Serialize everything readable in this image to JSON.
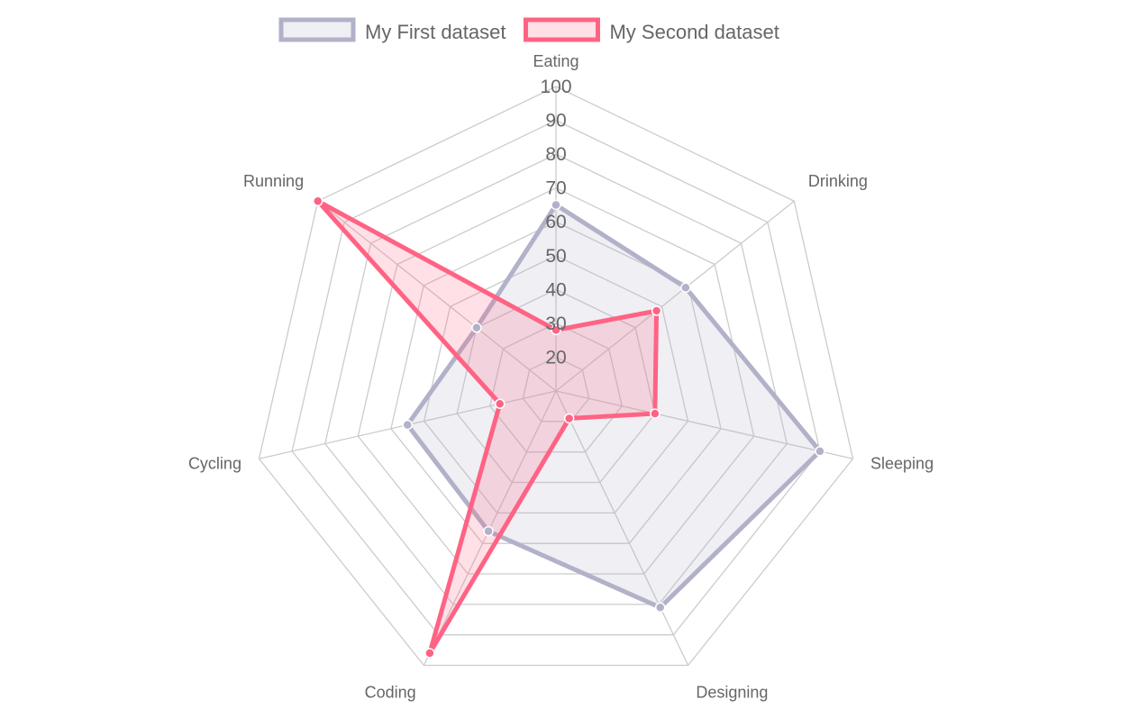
{
  "chart_data": {
    "type": "radar",
    "categories": [
      "Eating",
      "Drinking",
      "Sleeping",
      "Designing",
      "Coding",
      "Cycling",
      "Running"
    ],
    "series": [
      {
        "name": "My First dataset",
        "values": [
          65,
          59,
          90,
          81,
          56,
          55,
          40
        ],
        "border": "#b1b1c9",
        "fill": "rgba(177,177,201,0.2)"
      },
      {
        "name": "My Second dataset",
        "values": [
          28,
          48,
          40,
          19,
          96,
          27,
          100
        ],
        "border": "#ff6384",
        "fill": "rgba(255,99,132,0.2)"
      }
    ],
    "r_range": [
      10,
      100
    ],
    "ticks": [
      20,
      30,
      40,
      50,
      60,
      70,
      80,
      90,
      100
    ],
    "legend": "top",
    "grid": true
  }
}
